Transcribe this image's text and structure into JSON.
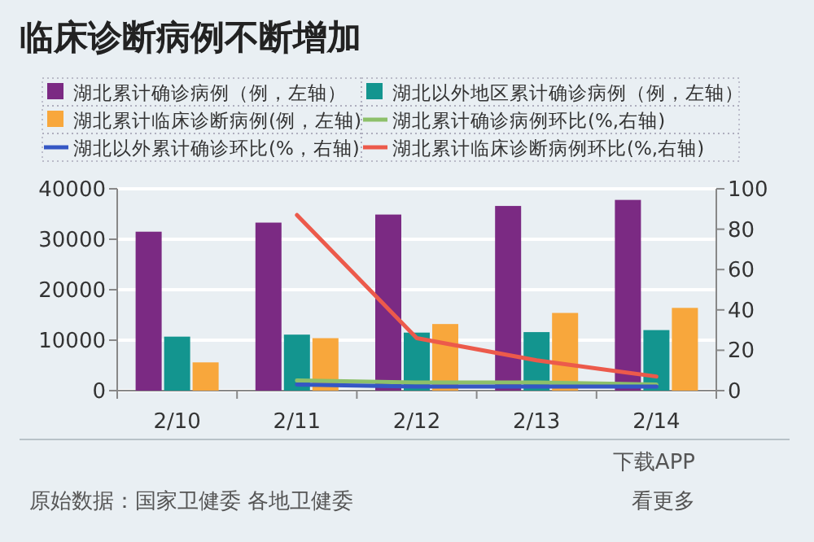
{
  "chart_data": {
    "type": "bar",
    "title": "临床诊断病例不断增加",
    "categories": [
      "2/10",
      "2/11",
      "2/12",
      "2/13",
      "2/14"
    ],
    "series": [
      {
        "name": "湖北累计确诊病例（例，左轴）",
        "color": "#7b2a83",
        "values": [
          31500,
          33300,
          34900,
          36600,
          37800
        ]
      },
      {
        "name": "湖北以外地区累计确诊病例（例，左轴）",
        "color": "#13958f",
        "values": [
          10700,
          11100,
          11500,
          11600,
          12000
        ]
      },
      {
        "name": "湖北累计临床诊断病例(例，左轴)",
        "color": "#f8a73c",
        "values": [
          5600,
          10400,
          13200,
          15400,
          16400
        ]
      },
      {
        "name": "湖北累计确诊病例环比(%,右轴)",
        "type": "line",
        "axis": "y2",
        "color": "#8dc06a",
        "values": [
          null,
          5,
          4,
          4,
          3
        ]
      },
      {
        "name": "湖北以外累计确诊环比(%，右轴)",
        "type": "line",
        "axis": "y2",
        "color": "#3557c4",
        "values": [
          null,
          3,
          2,
          2,
          2
        ]
      },
      {
        "name": "湖北累计临床诊断病例环比(%,右轴)",
        "type": "line",
        "axis": "y2",
        "color": "#ec5a4b",
        "values": [
          null,
          87,
          26,
          15,
          7
        ]
      }
    ],
    "ylim": [
      0,
      40000
    ],
    "yticks": [
      0,
      10000,
      20000,
      30000,
      40000
    ],
    "y2lim": [
      0,
      100
    ],
    "y2ticks": [
      0,
      20,
      40,
      60,
      80,
      100
    ],
    "grid": "y",
    "legend": "top",
    "marker": "none",
    "line_style": "solid",
    "annotations": [
      "原始数据：国家卫健委 各地卫健委",
      "下载APP",
      "看更多"
    ]
  }
}
